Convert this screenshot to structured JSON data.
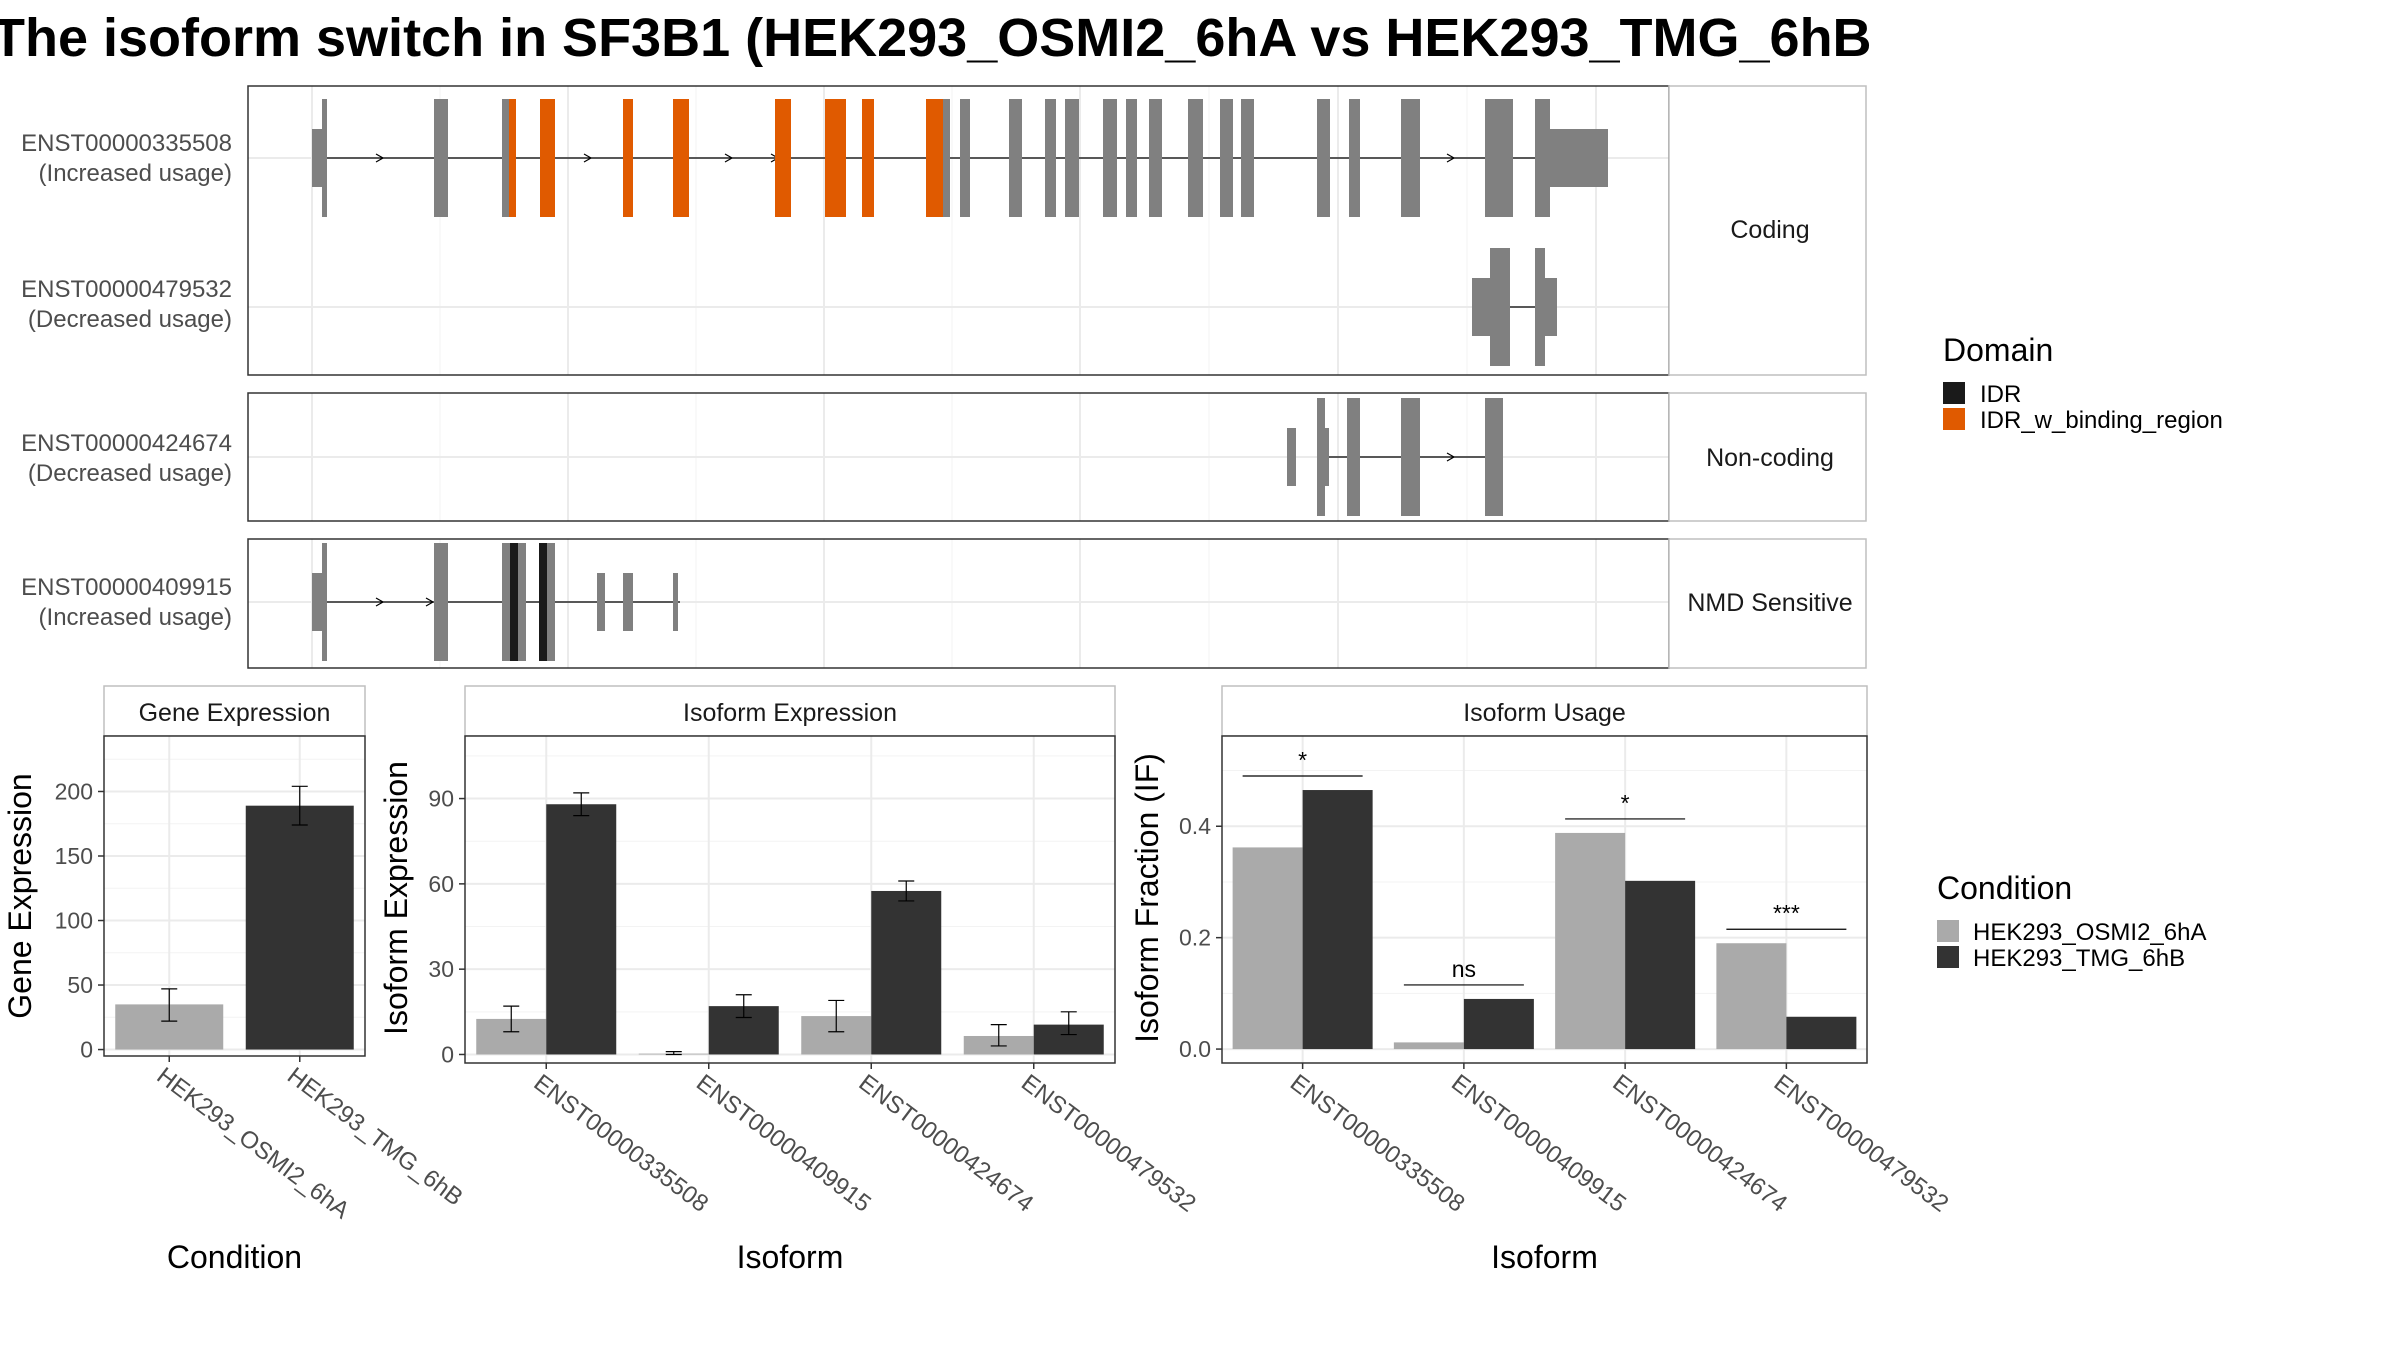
{
  "title": "The isoform switch in SF3B1 (HEK293_OSMI2_6hA vs HEK293_TMG_6hB",
  "colors": {
    "exon": "#808080",
    "IDR": "#1a1a1a",
    "IDR_w_binding_region": "#e05a00",
    "condA": "#aaaaaa",
    "condB": "#333333",
    "frame": "#333333",
    "strip_border": "#bfbfbf",
    "grid": "#ebebeb"
  },
  "structure": {
    "groups": [
      {
        "label": "Coding",
        "transcripts": [
          {
            "id": "ENST00000335508",
            "usage": "(Increased usage)"
          },
          {
            "id": "ENST00000479532",
            "usage": "(Decreased usage)"
          }
        ]
      },
      {
        "label": "Non-coding",
        "transcripts": [
          {
            "id": "ENST00000424674",
            "usage": "(Decreased usage)"
          }
        ]
      },
      {
        "label": "NMD Sensitive",
        "transcripts": [
          {
            "id": "ENST00000409915",
            "usage": "(Increased usage)"
          }
        ]
      }
    ],
    "domain_legend": {
      "title": "Domain",
      "items": [
        {
          "label": "IDR",
          "color": "#1a1a1a"
        },
        {
          "label": "IDR_w_binding_region",
          "color": "#e05a00"
        }
      ]
    }
  },
  "condition_legend": {
    "title": "Condition",
    "items": [
      {
        "label": "HEK293_OSMI2_6hA",
        "color": "#aaaaaa"
      },
      {
        "label": "HEK293_TMG_6hB",
        "color": "#333333"
      }
    ]
  },
  "chart_data": [
    {
      "type": "bar",
      "title": "Gene Expression",
      "xlabel": "Condition",
      "ylabel": "Gene Expression",
      "categories": [
        "HEK293_OSMI2_6hA",
        "HEK293_TMG_6hB"
      ],
      "values": [
        35,
        189
      ],
      "error_low": [
        22,
        174
      ],
      "error_high": [
        47,
        204
      ],
      "ylim": [
        -5,
        243
      ],
      "yticks": [
        0,
        50,
        100,
        150,
        200
      ]
    },
    {
      "type": "bar",
      "title": "Isoform Expression",
      "xlabel": "Isoform",
      "ylabel": "Isoform Expression",
      "categories": [
        "ENST00000335508",
        "ENST00000409915",
        "ENST00000424674",
        "ENST00000479532"
      ],
      "series": [
        {
          "name": "HEK293_OSMI2_6hA",
          "values": [
            12.5,
            0.3,
            13.5,
            6.5
          ],
          "error_low": [
            8,
            0,
            8,
            3
          ],
          "error_high": [
            17,
            1,
            19,
            10.5
          ]
        },
        {
          "name": "HEK293_TMG_6hB",
          "values": [
            88,
            17,
            57.5,
            10.5
          ],
          "error_low": [
            84,
            13,
            54,
            7
          ],
          "error_high": [
            92,
            21,
            61,
            15
          ]
        }
      ],
      "ylim": [
        -3,
        112
      ],
      "yticks": [
        0,
        30,
        60,
        90
      ]
    },
    {
      "type": "bar",
      "title": "Isoform Usage",
      "xlabel": "Isoform",
      "ylabel": "Isoform Fraction (IF)",
      "categories": [
        "ENST00000335508",
        "ENST00000409915",
        "ENST00000424674",
        "ENST00000479532"
      ],
      "series": [
        {
          "name": "HEK293_OSMI2_6hA",
          "values": [
            0.362,
            0.012,
            0.388,
            0.19
          ]
        },
        {
          "name": "HEK293_TMG_6hB",
          "values": [
            0.465,
            0.09,
            0.302,
            0.058
          ]
        }
      ],
      "significance": [
        "*",
        "ns",
        "*",
        "***"
      ],
      "ylim": [
        -0.025,
        0.562
      ],
      "yticks": [
        0.0,
        0.2,
        0.4
      ],
      "ytick_labels": [
        "0.0",
        "0.2",
        "0.4"
      ]
    }
  ]
}
